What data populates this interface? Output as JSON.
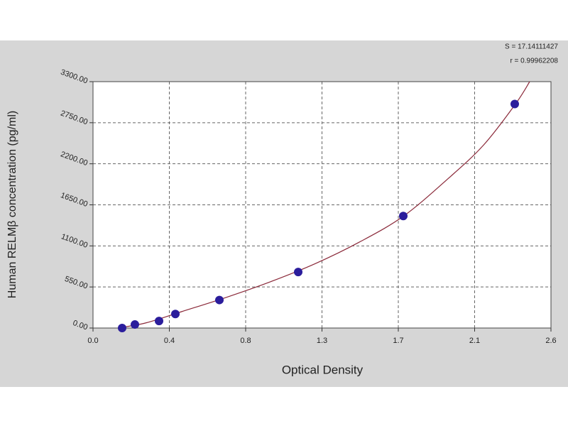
{
  "chart_data": {
    "type": "scatter",
    "annotations": [
      "S = 17.14111427",
      "r = 0.99962208"
    ],
    "x_label": "Optical Density",
    "y_label": "Human RELMβ concentration (pg/ml)",
    "x": [
      0.164,
      0.236,
      0.372,
      0.464,
      0.712,
      1.156,
      1.748,
      2.376
    ],
    "series": [
      {
        "color": "#2b1d9c",
        "values": [
          0,
          47,
          94,
          188,
          375,
          750,
          1500,
          3000
        ]
      }
    ],
    "fit": {
      "color": "#8b2a3a",
      "x": [
        0.14,
        0.3,
        0.5,
        0.75,
        1.0,
        1.25,
        1.5,
        1.75,
        2.0,
        2.2,
        2.38,
        2.46
      ],
      "y": [
        0,
        70,
        220,
        410,
        620,
        860,
        1150,
        1500,
        2000,
        2450,
        3000,
        3300
      ]
    },
    "xlim": [
      0,
      2.58
    ],
    "xticks": [
      {
        "value": 0,
        "label": "0.0"
      },
      {
        "value": 0.43,
        "label": "0.4"
      },
      {
        "value": 0.86,
        "label": "0.8"
      },
      {
        "value": 1.29,
        "label": "1.3"
      },
      {
        "value": 1.72,
        "label": "1.7"
      },
      {
        "value": 2.15,
        "label": "2.1"
      },
      {
        "value": 2.58,
        "label": "2.6"
      }
    ],
    "ylim": [
      0,
      3300
    ],
    "yticks": [
      {
        "value": 0,
        "label": "0.00"
      },
      {
        "value": 550,
        "label": "550.00"
      },
      {
        "value": 1100,
        "label": "1100.00"
      },
      {
        "value": 1650,
        "label": "1650.00"
      },
      {
        "value": 2200,
        "label": "2200.00"
      },
      {
        "value": 2750,
        "label": "2750.00"
      },
      {
        "value": 3300,
        "label": "3300.00"
      }
    ],
    "grid": true
  }
}
